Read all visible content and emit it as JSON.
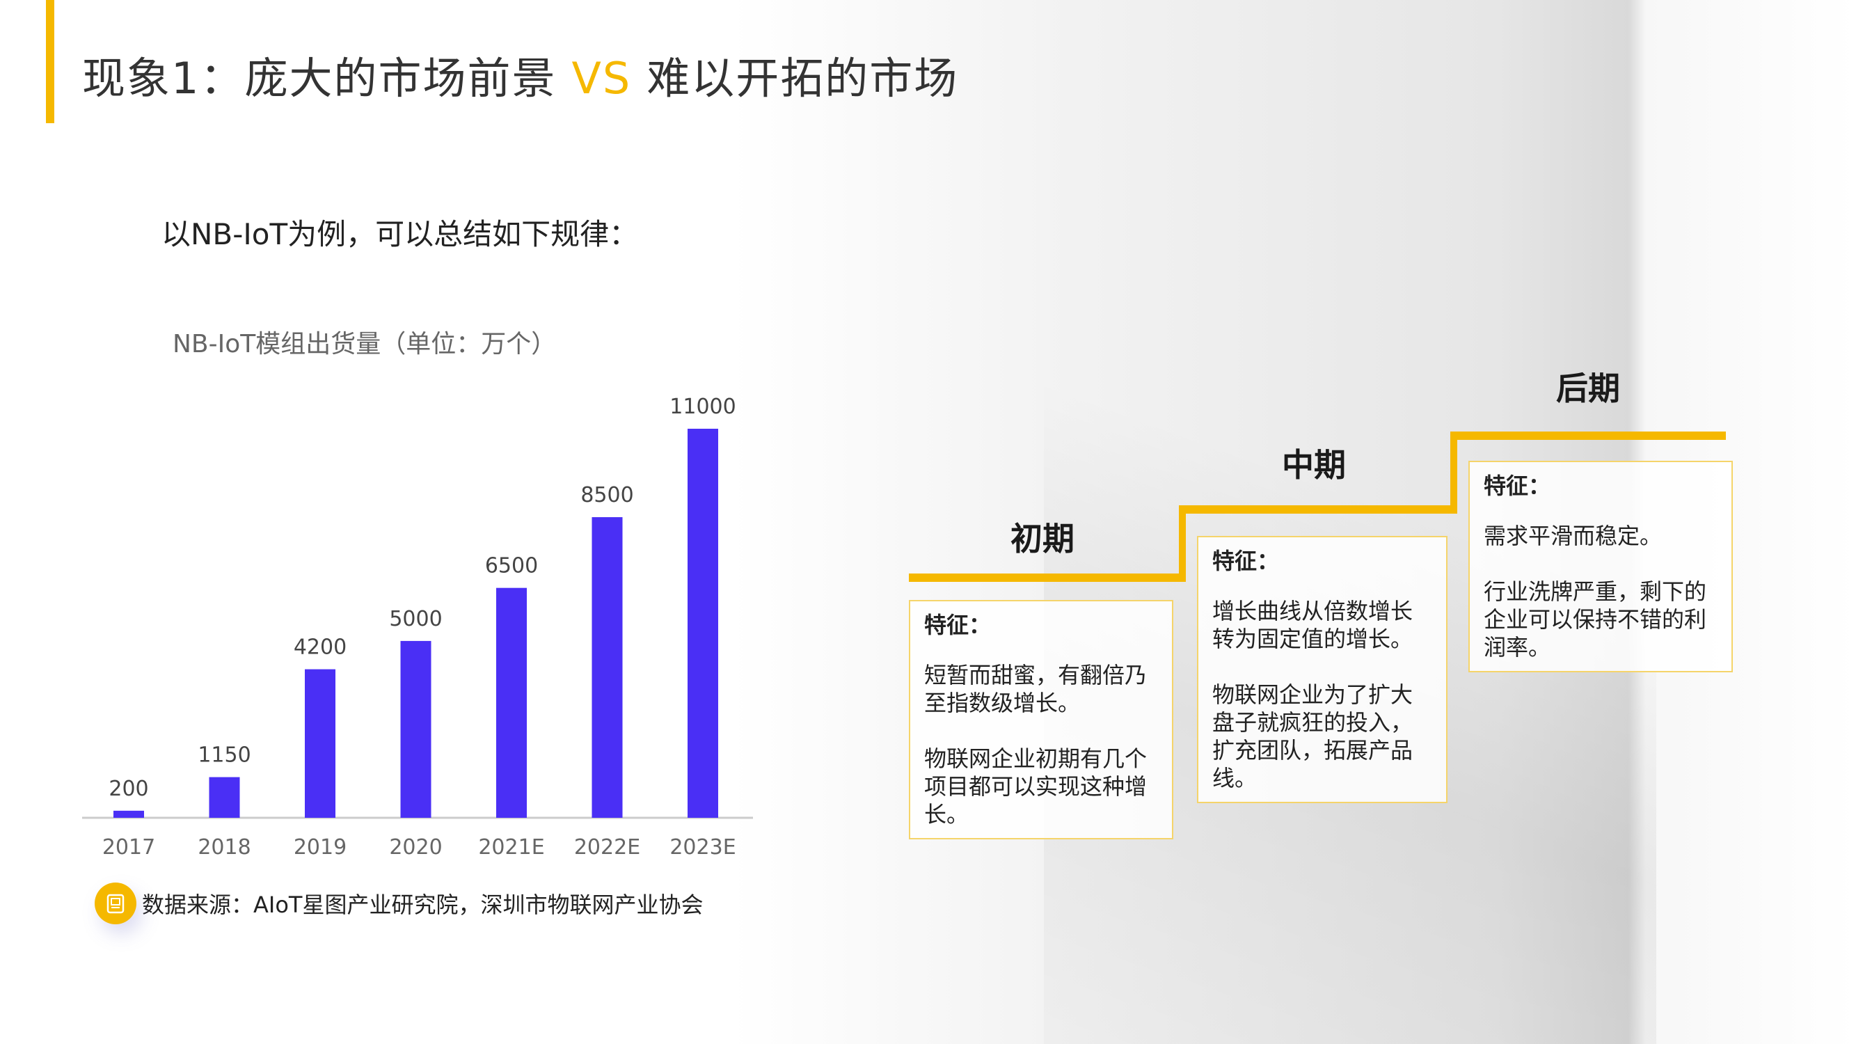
{
  "title": {
    "main": "现象1：庞大的市场前景",
    "vs": "VS",
    "rest": "难以开拓的市场"
  },
  "subtitle": "以NB-IoT为例，可以总结如下规律：",
  "chart_data": {
    "type": "bar",
    "title": "NB-IoT模组出货量（单位：万个）",
    "categories": [
      "2017",
      "2018",
      "2019",
      "2020",
      "2021E",
      "2022E",
      "2023E"
    ],
    "values": [
      200,
      1150,
      4200,
      5000,
      6500,
      8500,
      11000
    ],
    "data_labels": [
      "200",
      "1150",
      "4200",
      "5000",
      "6500",
      "8500",
      "11000"
    ],
    "ylim": [
      0,
      11000
    ],
    "bar_color": "#4a2ff5",
    "grid": false,
    "legend": "none"
  },
  "source": {
    "text": "数据来源：AIoT星图产业研究院，深圳市物联网产业协会",
    "icon": "document-icon"
  },
  "accent_color": "#f5b800",
  "stages": [
    {
      "title": "初期",
      "feature_label": "特征：",
      "paragraphs": [
        "短暂而甜蜜，有翻倍乃至指数级增长。",
        "物联网企业初期有几个项目都可以实现这种增长。"
      ]
    },
    {
      "title": "中期",
      "feature_label": "特征：",
      "paragraphs": [
        "增长曲线从倍数增长转为固定值的增长。",
        "物联网企业为了扩大盘子就疯狂的投入，扩充团队，拓展产品线。"
      ]
    },
    {
      "title": "后期",
      "feature_label": "特征：",
      "paragraphs": [
        "需求平滑而稳定。",
        "行业洗牌严重，剩下的企业可以保持不错的利润率。"
      ]
    }
  ]
}
